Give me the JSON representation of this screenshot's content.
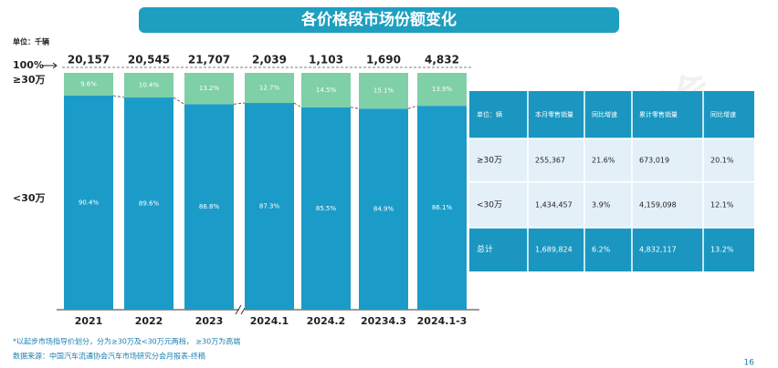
{
  "chart_data": {
    "type": "bar",
    "stacked": true,
    "title": "各价格段市场份额变化",
    "unit_label": "单位：千辆",
    "categories": [
      "2021",
      "2022",
      "2023",
      "2024.1",
      "2024.2",
      "20234.3",
      "2024.1-3"
    ],
    "ylim": [
      0,
      100
    ],
    "yticks": [
      {
        "value": 100,
        "label": "100%"
      }
    ],
    "series": [
      {
        "name": "<30万",
        "color": "#1b9cc8",
        "values": [
          90.4,
          89.6,
          86.8,
          87.3,
          85.5,
          84.9,
          86.1
        ],
        "value_labels": [
          "90.4%",
          "89.6%",
          "86.8%",
          "87.3%",
          "85.5%",
          "84.9%",
          "86.1%"
        ]
      },
      {
        "name": "≥30万",
        "color": "#7fcfa7",
        "values": [
          9.6,
          10.4,
          13.2,
          12.7,
          14.5,
          15.1,
          13.9
        ],
        "value_labels": [
          "9.6%",
          "10.4%",
          "13.2%",
          "12.7%",
          "14.5%",
          "15.1%",
          "13.9%"
        ]
      }
    ],
    "totals": {
      "values": [
        20157,
        20545,
        21707,
        2039,
        1103,
        1690,
        4832
      ],
      "value_labels": [
        "20,157",
        "20,545",
        "21,707",
        "2,039",
        "1,103",
        "1,690",
        "4,832"
      ]
    }
  },
  "table": {
    "header": [
      "单位：辆",
      "本月零售销量",
      "同比增速",
      "累计零售销量",
      "同比增速"
    ],
    "rows": [
      [
        "≥30万",
        "255,367",
        "21.6%",
        "673,019",
        "20.1%"
      ],
      [
        "<30万",
        "1,434,457",
        "3.9%",
        "4,159,098",
        "12.1%"
      ],
      [
        "总计",
        "1,689,824",
        "6.2%",
        "4,832,117",
        "13.2%"
      ]
    ]
  },
  "footnotes": [
    "*以起步市场指导价划分，分为≥30万及<30万元两档， ≥30万为高端",
    "数据来源：中国汽车流通协会汽车市场研究分会月报表-终稿"
  ],
  "watermark": "CPCA乘联会",
  "page_number": "16"
}
